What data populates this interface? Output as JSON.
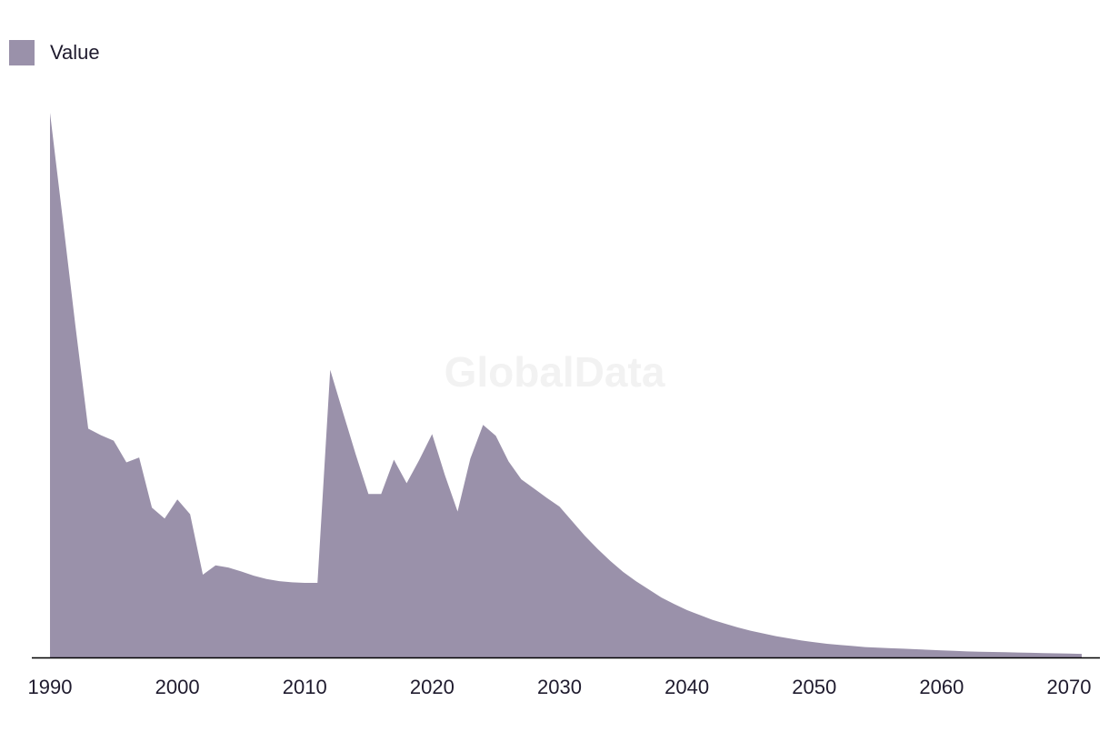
{
  "watermark": "GlobalData",
  "colors": {
    "area": "#9a91aa",
    "axis": "#000000",
    "text": "#1f1b2e",
    "watermark": "#f2f2f2"
  },
  "chart_data": {
    "type": "area",
    "legend": {
      "position": "top-left",
      "entries": [
        "Value"
      ]
    },
    "grid": false,
    "x_tick_labels": [
      "1990",
      "2000",
      "2010",
      "2020",
      "2030",
      "2040",
      "2050",
      "2060",
      "2070"
    ],
    "xlim": [
      1990,
      2071
    ],
    "ylim": [
      0,
      100
    ],
    "series": [
      {
        "name": "Value",
        "x": [
          1990,
          1991,
          1992,
          1993,
          1994,
          1995,
          1996,
          1997,
          1998,
          1999,
          2000,
          2001,
          2002,
          2003,
          2004,
          2005,
          2006,
          2007,
          2008,
          2009,
          2010,
          2011,
          2012,
          2013,
          2014,
          2015,
          2016,
          2017,
          2018,
          2019,
          2020,
          2021,
          2022,
          2023,
          2024,
          2025,
          2026,
          2027,
          2028,
          2029,
          2030,
          2031,
          2032,
          2033,
          2034,
          2035,
          2036,
          2037,
          2038,
          2039,
          2040,
          2041,
          2042,
          2043,
          2044,
          2045,
          2046,
          2047,
          2048,
          2049,
          2050,
          2051,
          2052,
          2053,
          2054,
          2055,
          2056,
          2057,
          2058,
          2059,
          2060,
          2061,
          2062,
          2063,
          2064,
          2065,
          2066,
          2067,
          2068,
          2069,
          2070,
          2071
        ],
        "values": [
          100,
          80.5,
          60.8,
          42.0,
          40.8,
          39.8,
          35.8,
          36.7,
          27.5,
          25.5,
          29.0,
          26.3,
          15.2,
          16.9,
          16.5,
          15.8,
          15.0,
          14.4,
          14.0,
          13.8,
          13.7,
          13.7,
          52.8,
          45.0,
          37.3,
          30.0,
          30.0,
          36.3,
          32.0,
          36.3,
          41.0,
          33.5,
          26.8,
          36.5,
          42.7,
          40.7,
          36.0,
          32.7,
          31.0,
          29.3,
          27.7,
          25.0,
          22.3,
          19.9,
          17.7,
          15.7,
          14.0,
          12.5,
          11.0,
          9.8,
          8.7,
          7.8,
          6.9,
          6.2,
          5.5,
          4.9,
          4.4,
          3.9,
          3.5,
          3.1,
          2.8,
          2.5,
          2.3,
          2.1,
          1.9,
          1.8,
          1.7,
          1.6,
          1.5,
          1.4,
          1.3,
          1.2,
          1.1,
          1.05,
          1.0,
          0.95,
          0.9,
          0.85,
          0.8,
          0.75,
          0.7,
          0.65
        ]
      }
    ]
  }
}
